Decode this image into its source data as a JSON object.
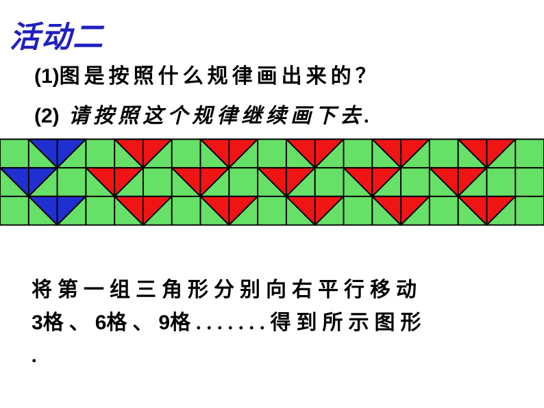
{
  "title": "活动二",
  "question1_num": "(1)",
  "question1_text": "图是按照什么规律画出来的？",
  "question2_num": "(2)",
  "question2_text": " 请按照这个规律继续画下去.",
  "answer_line1_a": "将第一组三角形分别向右平行移动",
  "answer_line2_a": "3",
  "answer_line2_b": "格、",
  "answer_line2_c": "6",
  "answer_line2_d": "格、",
  "answer_line2_e": "9",
  "answer_line2_f": "格.......得到所示图形",
  "answer_line3": ".",
  "grid": {
    "cols": 19,
    "rows": 3,
    "cell": 42,
    "bg": "#66e066",
    "line": "#000000",
    "line_width": 2,
    "blue": "#2030d0",
    "red": "#ef1515",
    "row_offsets": [
      1,
      0,
      1
    ],
    "blue_col": 0,
    "red_cols": [
      3,
      6,
      9,
      12,
      15
    ]
  }
}
